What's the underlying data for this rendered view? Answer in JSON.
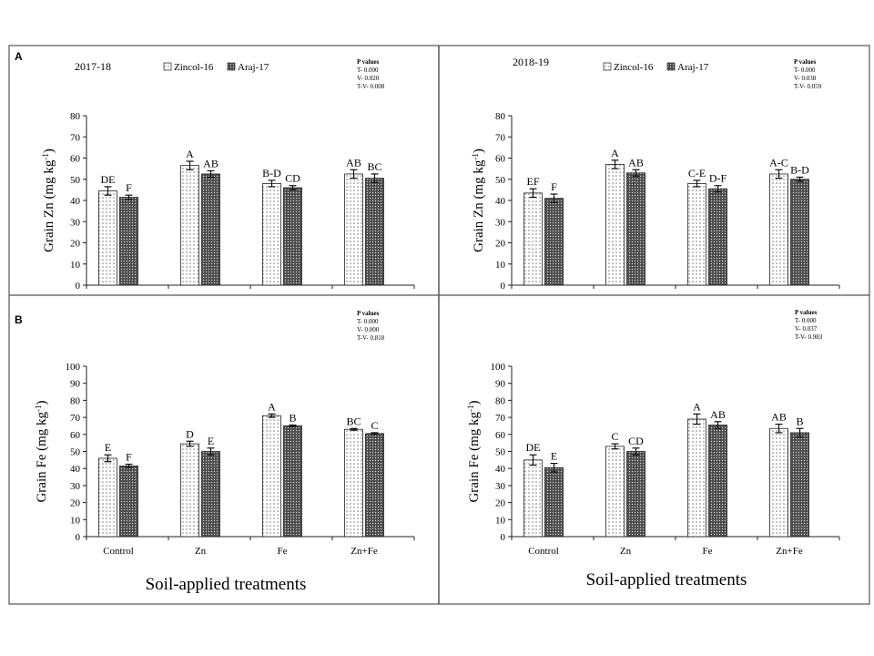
{
  "colors": {
    "frame": "#555555",
    "zincol_fill": "#ffffff",
    "zincol_dot": "#6f6f6f",
    "araj_fill": "#4a4a4a",
    "araj_dot": "#cfcfcf",
    "axis": "#222222"
  },
  "row_labels": [
    "A",
    "B"
  ],
  "x_caption": "Soil-applied treatments",
  "chart_data": [
    {
      "type": "bar",
      "panel": "A-left",
      "year": "2017-18",
      "ylabel": "Grain Zn (mg kg-1)",
      "ylabel_parts": [
        "Grain Zn (mg kg",
        "-1",
        ")"
      ],
      "ylim": [
        0,
        80
      ],
      "yticks": [
        0,
        10,
        20,
        30,
        40,
        50,
        60,
        70,
        80
      ],
      "categories": [
        "Control",
        "Zn",
        "Fe",
        "Zn+Fe"
      ],
      "show_category_labels": false,
      "legend": [
        "Zincol-16",
        "Araj-17"
      ],
      "pvalues": [
        "P values",
        "T- 0.000",
        "V- 0.020",
        "T-V- 0.008"
      ],
      "series": [
        {
          "name": "Zincol-16",
          "values": [
            44.5,
            56.5,
            48,
            52.5
          ],
          "errors": [
            2,
            2,
            1.5,
            2
          ],
          "letters": [
            "DE",
            "A",
            "B-D",
            "AB"
          ]
        },
        {
          "name": "Araj-17",
          "values": [
            41.5,
            52.5,
            46,
            50.5
          ],
          "errors": [
            1,
            1.5,
            1,
            2
          ],
          "letters": [
            "F",
            "AB",
            "CD",
            "BC"
          ]
        }
      ]
    },
    {
      "type": "bar",
      "panel": "A-right",
      "year": "2018-19",
      "ylabel": "Grain Zn (mg kg-1)",
      "ylabel_parts": [
        "Grain Zn (mg kg",
        "-1",
        ")"
      ],
      "ylim": [
        0,
        80
      ],
      "yticks": [
        0,
        10,
        20,
        30,
        40,
        50,
        60,
        70,
        80
      ],
      "categories": [
        "Control",
        "Zn",
        "Fe",
        "Zn+Fe"
      ],
      "show_category_labels": false,
      "legend": [
        "Zincol-16",
        "Araj-17"
      ],
      "pvalues": [
        "P values",
        "T- 0.000",
        "V- 0.038",
        "T-V- 0.059"
      ],
      "series": [
        {
          "name": "Zincol-16",
          "values": [
            43.5,
            57,
            48,
            52.5
          ],
          "errors": [
            2,
            2,
            1.5,
            2
          ],
          "letters": [
            "EF",
            "A",
            "C-E",
            "A-C"
          ]
        },
        {
          "name": "Araj-17",
          "values": [
            41,
            53,
            45.5,
            50
          ],
          "errors": [
            2,
            1.5,
            1.5,
            1
          ],
          "letters": [
            "F",
            "AB",
            "D-F",
            "B-D"
          ]
        }
      ]
    },
    {
      "type": "bar",
      "panel": "B-left",
      "year": "",
      "ylabel": "Grain Fe (mg kg-1)",
      "ylabel_parts": [
        "Grain Fe (mg kg",
        "-1",
        ")"
      ],
      "ylim": [
        0,
        100
      ],
      "yticks": [
        0,
        10,
        20,
        30,
        40,
        50,
        60,
        70,
        80,
        90,
        100
      ],
      "categories": [
        "Control",
        "Zn",
        "Fe",
        "Zn+Fe"
      ],
      "show_category_labels": true,
      "legend": [],
      "pvalues": [
        "P values",
        "T- 0.000",
        "V- 0.000",
        "T-V- 0.818"
      ],
      "series": [
        {
          "name": "Zincol-16",
          "values": [
            46,
            54.5,
            71,
            63
          ],
          "errors": [
            2,
            1.5,
            1,
            0.5
          ],
          "letters": [
            "E",
            "D",
            "A",
            "BC"
          ]
        },
        {
          "name": "Araj-17",
          "values": [
            41.5,
            50,
            65,
            60.5
          ],
          "errors": [
            1,
            2,
            0.5,
            0.5
          ],
          "letters": [
            "F",
            "E",
            "B",
            "C"
          ]
        }
      ]
    },
    {
      "type": "bar",
      "panel": "B-right",
      "year": "",
      "ylabel": "Grain Fe (mg kg-1)",
      "ylabel_parts": [
        "Grain Fe (mg kg",
        "-1",
        ")"
      ],
      "ylim": [
        0,
        100
      ],
      "yticks": [
        0,
        10,
        20,
        30,
        40,
        50,
        60,
        70,
        80,
        90,
        100
      ],
      "categories": [
        "Control",
        "Zn",
        "Fe",
        "Zn+Fe"
      ],
      "show_category_labels": true,
      "legend": [],
      "pvalues": [
        "P values",
        "T- 0.000",
        "V- 0.037",
        "T-V- 0.983"
      ],
      "series": [
        {
          "name": "Zincol-16",
          "values": [
            45,
            53,
            69,
            63.5
          ],
          "errors": [
            3,
            1.5,
            3,
            2.5
          ],
          "letters": [
            "DE",
            "C",
            "A",
            "AB"
          ]
        },
        {
          "name": "Araj-17",
          "values": [
            40.5,
            50,
            65.5,
            61
          ],
          "errors": [
            2.5,
            2,
            2,
            2.5
          ],
          "letters": [
            "E",
            "CD",
            "AB",
            "B"
          ]
        }
      ]
    }
  ]
}
